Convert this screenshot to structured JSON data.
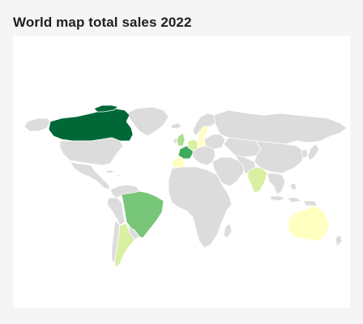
{
  "header": {
    "title": "World map total sales 2022"
  },
  "map": {
    "year": 2022,
    "metric": "total sales",
    "colors": {
      "no_data": "#dcdcdc",
      "level_1": "#ffffc2",
      "level_2": "#d9efa2",
      "level_3": "#addd8e",
      "level_4": "#78c679",
      "level_5": "#41ab5d",
      "level_6": "#006837"
    },
    "regions": [
      {
        "country": "Canada",
        "level": 6
      },
      {
        "country": "Brazil",
        "level": 4
      },
      {
        "country": "Argentina",
        "level": 2
      },
      {
        "country": "India",
        "level": 2
      },
      {
        "country": "Australia",
        "level": 1
      },
      {
        "country": "France",
        "level": 5
      },
      {
        "country": "United Kingdom",
        "level": 3
      },
      {
        "country": "Germany",
        "level": 2
      },
      {
        "country": "Spain",
        "level": 1
      },
      {
        "country": "Sweden",
        "level": 1
      },
      {
        "country": "Poland",
        "level": 1
      }
    ]
  }
}
